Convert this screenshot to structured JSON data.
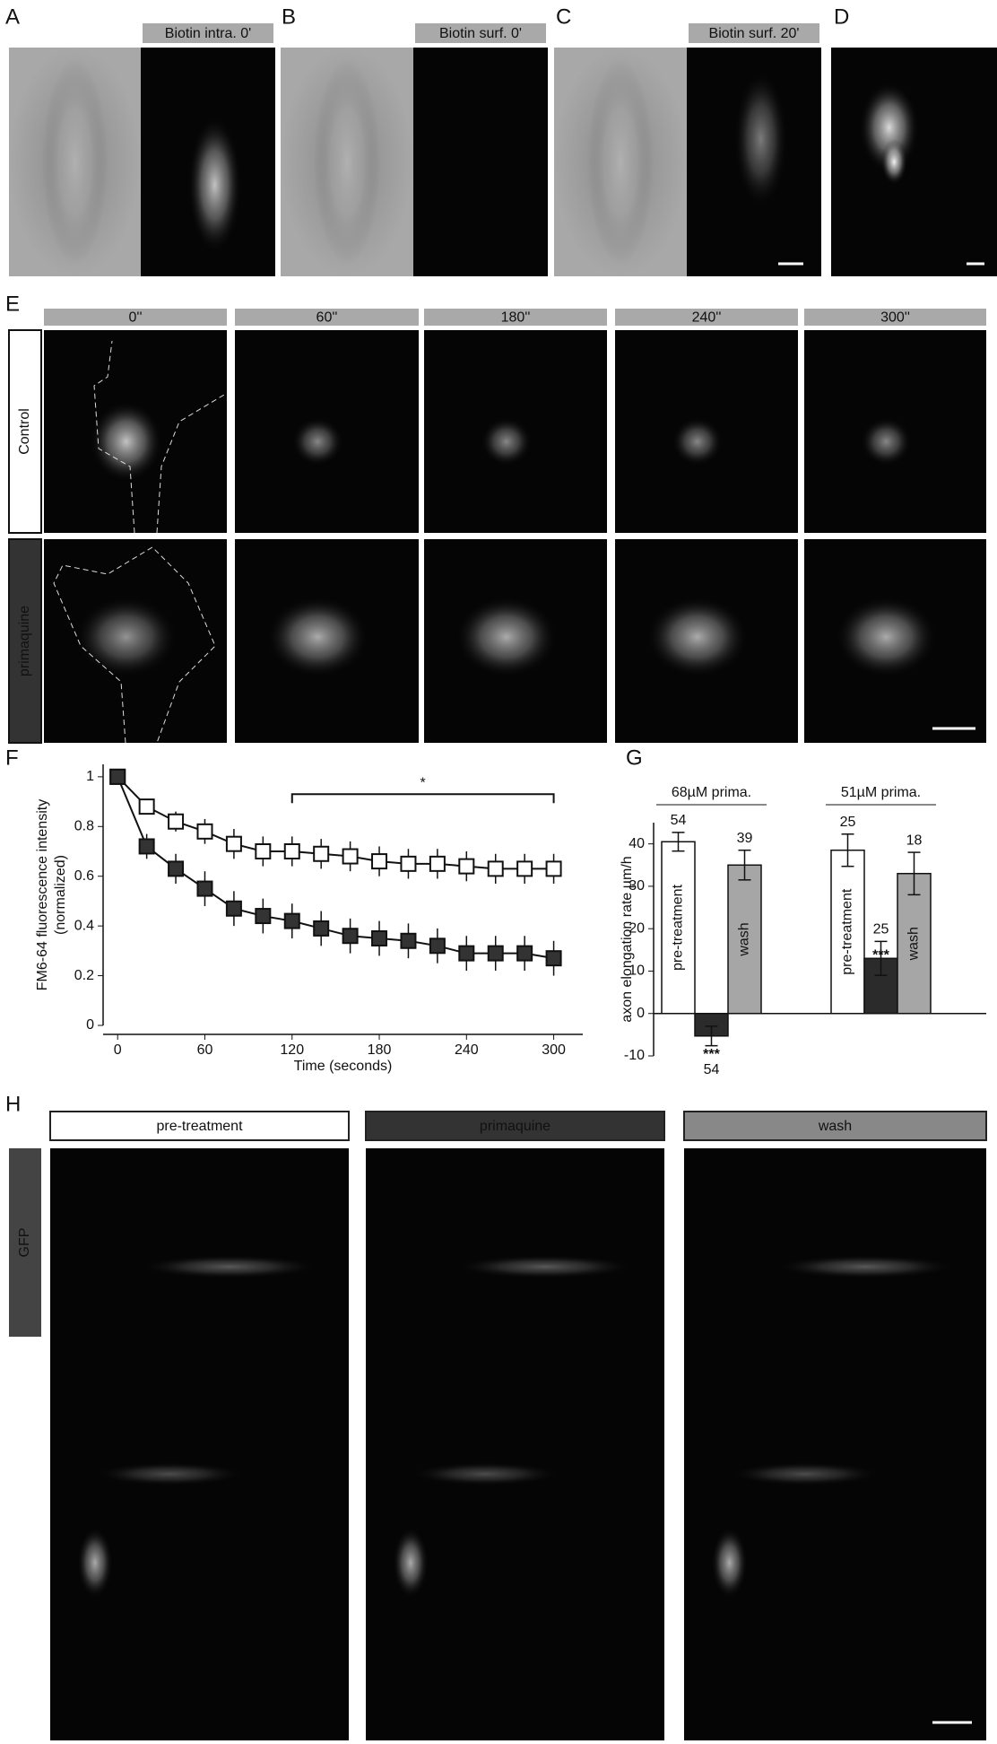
{
  "panels": {
    "letters": [
      "A",
      "B",
      "C",
      "D",
      "E",
      "F",
      "G",
      "H"
    ],
    "row1_labels": [
      "Biotin intra. 0'",
      "Biotin surf. 0'",
      "Biotin surf. 20'"
    ],
    "e_times": [
      "0''",
      "60''",
      "180''",
      "240''",
      "300''"
    ],
    "e_rows": [
      "Control",
      "primaquine"
    ],
    "h_headers": [
      "pre-treatment",
      "primaquine",
      "wash"
    ],
    "h_side": "GFP"
  },
  "chart_data": [
    {
      "type": "line",
      "ylabel": [
        "FM6-64 fluorescence intensity",
        "(normalized)"
      ],
      "xlabel": "Time (seconds)",
      "x": [
        0,
        20,
        40,
        60,
        80,
        100,
        120,
        140,
        160,
        180,
        200,
        220,
        240,
        260,
        280,
        300
      ],
      "series": [
        {
          "color": "#ffffff",
          "values": [
            1,
            0.88,
            0.82,
            0.78,
            0.73,
            0.7,
            0.7,
            0.69,
            0.68,
            0.66,
            0.65,
            0.65,
            0.64,
            0.63,
            0.63,
            0.63
          ],
          "errors": [
            0,
            0.03,
            0.04,
            0.05,
            0.06,
            0.06,
            0.06,
            0.06,
            0.06,
            0.06,
            0.06,
            0.06,
            0.06,
            0.06,
            0.06,
            0.06
          ]
        },
        {
          "color": "#333333",
          "values": [
            1,
            0.72,
            0.63,
            0.55,
            0.47,
            0.44,
            0.42,
            0.39,
            0.36,
            0.35,
            0.34,
            0.32,
            0.29,
            0.29,
            0.29,
            0.27
          ],
          "errors": [
            0,
            0.05,
            0.06,
            0.07,
            0.07,
            0.07,
            0.07,
            0.07,
            0.07,
            0.07,
            0.07,
            0.07,
            0.07,
            0.07,
            0.07,
            0.07
          ]
        }
      ],
      "xlim": [
        -10,
        320
      ],
      "ylim": [
        0,
        1.05
      ],
      "xticks": [
        0,
        60,
        120,
        180,
        240,
        300
      ],
      "yticks": [
        0,
        0.2,
        0.4,
        0.6,
        0.8,
        1
      ],
      "annotations": [
        {
          "text": "*",
          "x": [
            120,
            300
          ],
          "y": 0.93
        }
      ]
    },
    {
      "type": "bar",
      "ylabel": "axon elongation rate  µm/h",
      "ylim": [
        -10,
        45
      ],
      "yticks": [
        -10,
        0,
        10,
        20,
        30,
        40
      ],
      "groups": [
        {
          "label": "68µM prima.",
          "bars": [
            {
              "value": 40.5,
              "error": 2.2,
              "n": 54,
              "color": "#ffffff",
              "text": "pre-treatment"
            },
            {
              "value": -5.3,
              "error": 2.3,
              "n": 54,
              "color": "#2b2b2b",
              "sig": "***"
            },
            {
              "value": 35,
              "error": 3.5,
              "n": 39,
              "color": "#a6a6a6",
              "text": "wash"
            }
          ]
        },
        {
          "label": "51µM prima.",
          "bars": [
            {
              "value": 38.5,
              "error": 3.8,
              "n": 25,
              "color": "#ffffff",
              "text": "pre-treatment"
            },
            {
              "value": 13,
              "error": 4,
              "n": 25,
              "color": "#2b2b2b",
              "sig": "***"
            },
            {
              "value": 33,
              "error": 5,
              "n": 18,
              "color": "#a6a6a6",
              "text": "wash"
            }
          ]
        }
      ]
    }
  ]
}
